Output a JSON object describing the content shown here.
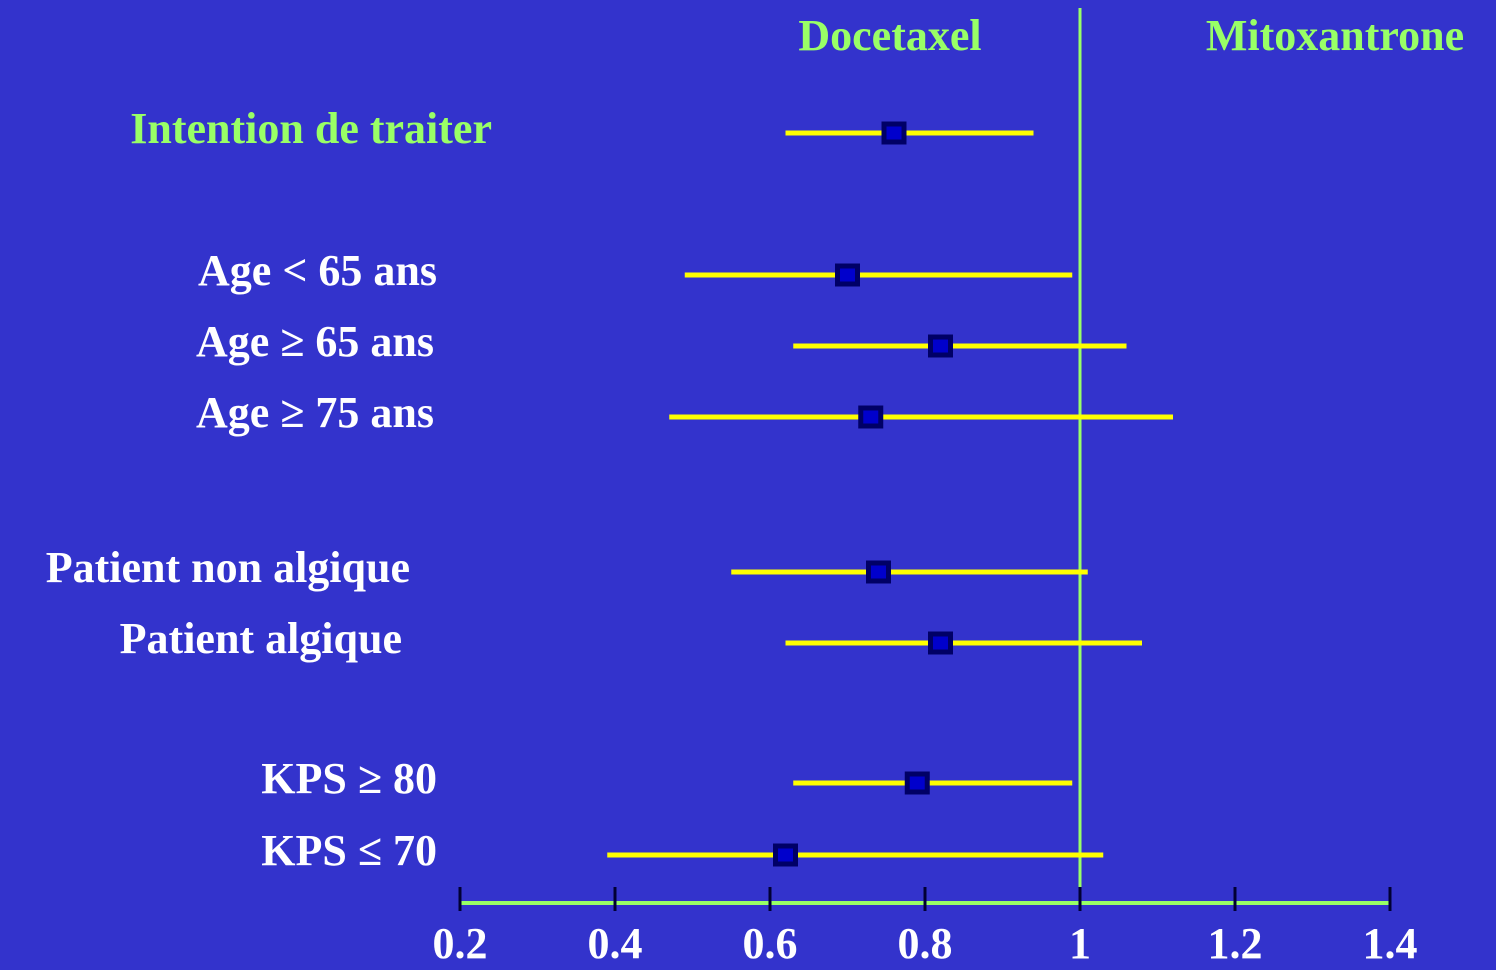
{
  "chart_data": {
    "type": "forest",
    "headers": [
      "Docetaxel",
      "Mitoxantrone"
    ],
    "categories": [
      "Intention de traiter",
      "Age < 65 ans",
      "Age ≥ 65 ans",
      "Age ≥ 75 ans",
      "Patient non algique",
      "Patient algique",
      "KPS ≥ 80",
      "KPS ≤ 70"
    ],
    "label_colors": [
      "#99ff66",
      "#ffffff",
      "#ffffff",
      "#ffffff",
      "#ffffff",
      "#ffffff",
      "#ffffff",
      "#ffffff"
    ],
    "values": [
      0.76,
      0.7,
      0.82,
      0.73,
      0.74,
      0.82,
      0.79,
      0.62
    ],
    "lower": [
      0.62,
      0.49,
      0.63,
      0.47,
      0.55,
      0.62,
      0.63,
      0.39
    ],
    "upper": [
      0.94,
      0.99,
      1.06,
      1.12,
      1.01,
      1.08,
      0.99,
      1.03
    ],
    "reference_line": 1,
    "xlim": [
      0.2,
      1.4
    ],
    "xticks": [
      0.2,
      0.4,
      0.6,
      0.8,
      1,
      1.2,
      1.4
    ],
    "interval_color": "#ffff00",
    "marker_color": "#000066",
    "axis_color": "#99ff66",
    "background": "#3333cc"
  }
}
